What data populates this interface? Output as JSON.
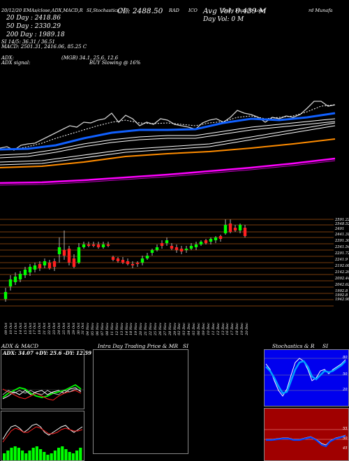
{
  "header": {
    "title_row": [
      "20/12/20 EMAs/close,ADX,MACD,R",
      "SI,Stochastics,MR",
      "CL: 2488.50",
      "RAD",
      "ICO",
      "Daily Munafa Lowt",
      "rd Munafa"
    ],
    "close_label": "CL: 2488.50"
  },
  "emas": [
    {
      "label": "20 Day : 2418.86",
      "color": "#ffffff"
    },
    {
      "label": "50 Day : 2330.29",
      "color": "#ffffff"
    },
    {
      "label": "200 Day : 1989.18",
      "color": "#ffffff"
    }
  ],
  "volume": {
    "avg": "Avg Vol: 0.439 M",
    "day": "Day Vol: 0  M"
  },
  "indicators": {
    "rsi": "SI 14/5: 36.31 / 36.51",
    "macd": "MACD: 2501.31, 2416.06, 85.25 C",
    "r": "R",
    "adx": "ADX:",
    "adx_signal": "ADX  signal:",
    "mgr": "(MGB) 34.1, 25.6, 12.6",
    "buy": "BUY Slowing @ 16%"
  },
  "price_axis": [
    "2591.22",
    "2548.52",
    "2491",
    "2441.31",
    "2391.36",
    "2341.54",
    "2291.72",
    "2241.9",
    "2192.08",
    "2142.26",
    "2092.44",
    "2042.62",
    "1992.8",
    "1992.8",
    "1942.98"
  ],
  "dates": [
    "09 Oct",
    "10 Oct",
    "11 Oct",
    "14 Oct",
    "15 Oct",
    "16 Oct",
    "17 Oct",
    "18 Oct",
    "21 Oct",
    "22 Oct",
    "23 Oct",
    "24 Oct",
    "25 Oct",
    "28 Oct",
    "29 Oct",
    "30 Oct",
    "31 Oct",
    "04 Nov",
    "05 Nov",
    "06 Nov",
    "07 Nov",
    "08 Nov",
    "11 Nov",
    "12 Nov",
    "13 Nov",
    "14 Nov",
    "18 Nov",
    "19 Nov",
    "20 Nov",
    "21 Nov",
    "22 Nov",
    "25 Nov",
    "26 Nov",
    "27 Nov",
    "28 Nov",
    "29 Nov",
    "02 Dec",
    "03 Dec",
    "04 Dec",
    "05 Dec",
    "06 Dec",
    "09 Dec",
    "10 Dec",
    "11 Dec",
    "12 Dec",
    "13 Dec",
    "16 Dec",
    "17 Dec",
    "18 Dec",
    "19 Dec",
    "20 Dec"
  ],
  "panels": {
    "adx_title": "ADX  & MACD",
    "adx_values": "ADX: 34.07 +DY: 25.6  -DY: 12.59",
    "intraday_title": "Intra  Day Trading Price  & MR",
    "intraday_si": "SI",
    "stoch_title": "Stochastics & R",
    "stoch_si": "SI",
    "stoch_levels": [
      "80",
      "50",
      "20"
    ],
    "rsi_levels": [
      "55",
      "50",
      "45"
    ]
  },
  "colors": {
    "ema20": "#ffffff",
    "ema50": "#1060ff",
    "ema200": "#ff8c00",
    "magenta": "#ff00ff",
    "green": "#00ff00",
    "red": "#ff2020",
    "blue": "#0044ff",
    "darkred": "#a00000"
  }
}
